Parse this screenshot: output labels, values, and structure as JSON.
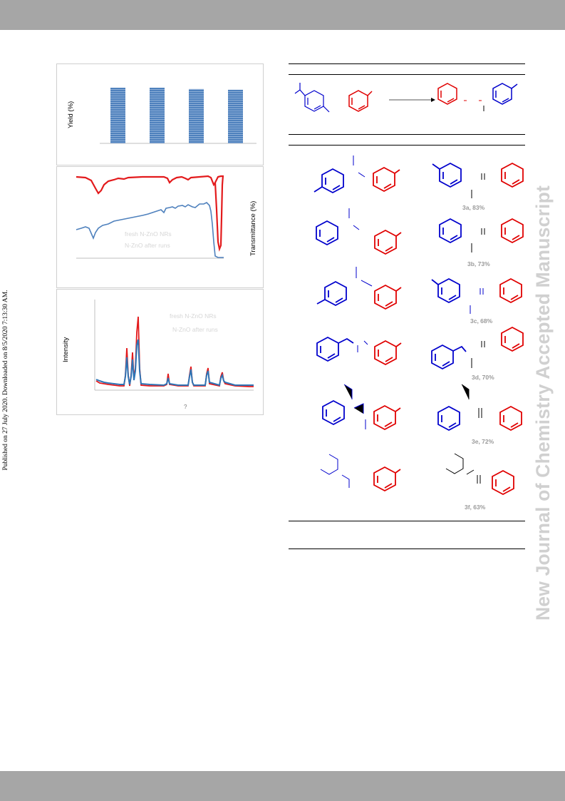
{
  "side_note": "Published on 27 July 2020. Downloaded on 8/5/2020 7:13:30 AM.",
  "watermark": "New Journal of Chemistry Accepted Manuscript",
  "panel_a": {
    "ylabel": "Yield (%)",
    "chart_data": {
      "type": "bar",
      "categories": [
        "",
        "",
        "",
        ""
      ],
      "values": [
        83,
        83,
        81,
        80
      ],
      "ylabel": "Yield (%)",
      "ylim": [
        0,
        100
      ],
      "colors": [
        "#4f81bd"
      ]
    }
  },
  "panel_b": {
    "ylabel": "Transmittance (%)",
    "legend": [
      "fresh N-ZnO NRs",
      "N-ZnO after runs"
    ],
    "chart_data": {
      "type": "line",
      "ylabel": "Transmittance (%)",
      "series": [
        {
          "name": "fresh N-ZnO NRs",
          "color": "#e31a1c"
        },
        {
          "name": "N-ZnO after runs",
          "color": "#4f81bd"
        }
      ]
    }
  },
  "panel_c": {
    "ylabel": "Intensity",
    "xlabel": "?",
    "legend": [
      "fresh N-ZnO NRs",
      "N-ZnO after runs"
    ],
    "chart_data": {
      "type": "line",
      "ylabel": "Intensity",
      "xlabel": "?",
      "series": [
        {
          "name": "fresh N-ZnO NRs",
          "color": "#e31a1c"
        },
        {
          "name": "N-ZnO after runs",
          "color": "#2e75b6"
        }
      ]
    }
  },
  "products": [
    {
      "label": "3a, 83%"
    },
    {
      "label": "3b, 73%"
    },
    {
      "label": "3c, 68%"
    },
    {
      "label": "3d, 70%"
    },
    {
      "label": "3e, 72%"
    },
    {
      "label": "3f, 63%"
    }
  ],
  "colors": {
    "amine": "#0000cc",
    "aldehyde": "#e00000",
    "band": "#a6a6a6"
  }
}
